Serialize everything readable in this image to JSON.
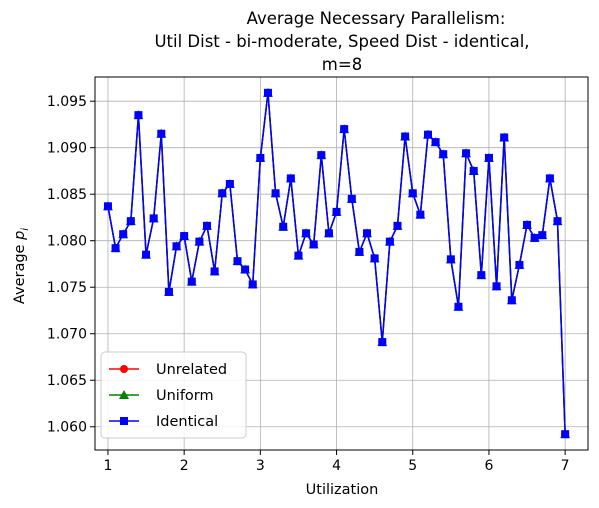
{
  "chart_data": {
    "type": "line",
    "title": [
      "Average Necessary Parallelism:",
      "Util Dist - bi-moderate, Speed Dist - identical,",
      "m=8"
    ],
    "xlabel": "Utilization",
    "ylabel_prefix": "Average ",
    "ylabel_var": "p",
    "ylabel_sub": "i",
    "xlim": [
      0.83,
      7.3
    ],
    "ylim": [
      1.0575,
      1.0976
    ],
    "xticks": [
      1,
      2,
      3,
      4,
      5,
      6,
      7
    ],
    "yticks": [
      1.06,
      1.065,
      1.07,
      1.075,
      1.08,
      1.085,
      1.09,
      1.095
    ],
    "grid": true,
    "legend_position": "lower-left",
    "x": [
      1.0,
      1.1,
      1.2,
      1.3,
      1.4,
      1.5,
      1.6,
      1.7,
      1.8,
      1.9,
      2.0,
      2.1,
      2.2,
      2.3,
      2.4,
      2.5,
      2.6,
      2.7,
      2.8,
      2.9,
      3.0,
      3.1,
      3.2,
      3.3,
      3.4,
      3.5,
      3.6,
      3.7,
      3.8,
      3.9,
      4.0,
      4.1,
      4.2,
      4.3,
      4.4,
      4.5,
      4.6,
      4.7,
      4.8,
      4.9,
      5.0,
      5.1,
      5.2,
      5.3,
      5.4,
      5.5,
      5.6,
      5.7,
      5.8,
      5.9,
      6.0,
      6.1,
      6.2,
      6.3,
      6.4,
      6.5,
      6.6,
      6.7,
      6.8,
      6.9,
      7.0
    ],
    "series": [
      {
        "name": "Unrelated",
        "color": "#ff0000",
        "marker": "circle",
        "values": [
          1.0837,
          1.0792,
          1.0807,
          1.0821,
          1.0935,
          1.0785,
          1.0824,
          1.0915,
          1.0745,
          1.0794,
          1.0805,
          1.0756,
          1.0799,
          1.0816,
          1.0767,
          1.0851,
          1.0861,
          1.0778,
          1.0769,
          1.0753,
          1.0889,
          1.0959,
          1.0851,
          1.0815,
          1.0867,
          1.0784,
          1.0808,
          1.0796,
          1.0892,
          1.0808,
          1.0831,
          1.092,
          1.0845,
          1.0788,
          1.0808,
          1.0781,
          1.0691,
          1.0799,
          1.0816,
          1.0912,
          1.0851,
          1.0828,
          1.0914,
          1.0906,
          1.0893,
          1.078,
          1.0729,
          1.0894,
          1.0875,
          1.0763,
          1.0889,
          1.0751,
          1.0911,
          1.0736,
          1.0774,
          1.0817,
          1.0803,
          1.0806,
          1.0867,
          1.0821,
          1.0592
        ]
      },
      {
        "name": "Uniform",
        "color": "#008000",
        "marker": "triangle",
        "values": [
          1.0837,
          1.0792,
          1.0807,
          1.0821,
          1.0935,
          1.0785,
          1.0824,
          1.0915,
          1.0745,
          1.0794,
          1.0805,
          1.0756,
          1.0799,
          1.0816,
          1.0767,
          1.0851,
          1.0861,
          1.0778,
          1.0769,
          1.0753,
          1.0889,
          1.0959,
          1.0851,
          1.0815,
          1.0867,
          1.0784,
          1.0808,
          1.0796,
          1.0892,
          1.0808,
          1.0831,
          1.092,
          1.0845,
          1.0788,
          1.0808,
          1.0781,
          1.0691,
          1.0799,
          1.0816,
          1.0912,
          1.0851,
          1.0828,
          1.0914,
          1.0906,
          1.0893,
          1.078,
          1.0729,
          1.0894,
          1.0875,
          1.0763,
          1.0889,
          1.0751,
          1.0911,
          1.0736,
          1.0774,
          1.0817,
          1.0803,
          1.0806,
          1.0867,
          1.0821,
          1.0592
        ]
      },
      {
        "name": "Identical",
        "color": "#0000ff",
        "marker": "square",
        "values": [
          1.0837,
          1.0792,
          1.0807,
          1.0821,
          1.0935,
          1.0785,
          1.0824,
          1.0915,
          1.0745,
          1.0794,
          1.0805,
          1.0756,
          1.0799,
          1.0816,
          1.0767,
          1.0851,
          1.0861,
          1.0778,
          1.0769,
          1.0753,
          1.0889,
          1.0959,
          1.0851,
          1.0815,
          1.0867,
          1.0784,
          1.0808,
          1.0796,
          1.0892,
          1.0808,
          1.0831,
          1.092,
          1.0845,
          1.0788,
          1.0808,
          1.0781,
          1.0691,
          1.0799,
          1.0816,
          1.0912,
          1.0851,
          1.0828,
          1.0914,
          1.0906,
          1.0893,
          1.078,
          1.0729,
          1.0894,
          1.0875,
          1.0763,
          1.0889,
          1.0751,
          1.0911,
          1.0736,
          1.0774,
          1.0817,
          1.0803,
          1.0806,
          1.0867,
          1.0821,
          1.0592
        ]
      }
    ]
  }
}
